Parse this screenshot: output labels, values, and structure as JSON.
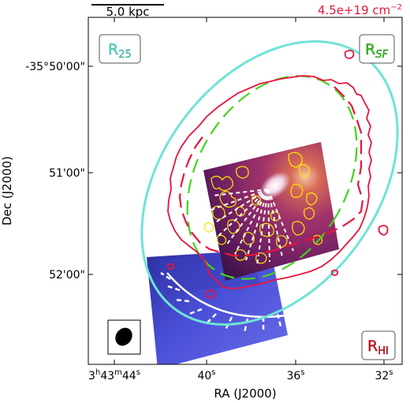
{
  "scale_bar": {
    "label": "5.0 kpc"
  },
  "contour_level": {
    "base": "4.5e+19 cm",
    "exponent": "−2"
  },
  "x_axis": {
    "title": "RA (J2000)",
    "ticks": [
      {
        "label": "3h43m44s",
        "parts": [
          "3",
          "h",
          "43",
          "m",
          "44",
          "s"
        ]
      },
      {
        "label": "40s",
        "parts": [
          "40",
          "s"
        ]
      },
      {
        "label": "36s",
        "parts": [
          "36",
          "s"
        ]
      },
      {
        "label": "32s",
        "parts": [
          "32",
          "s"
        ]
      }
    ]
  },
  "y_axis": {
    "title": "Dec (J2000)",
    "ticks": [
      "-35°50'00\"",
      "51'00\"",
      "52'00\""
    ]
  },
  "badges": {
    "r25": {
      "main": "R",
      "sub": "25",
      "color": "#5fe0cf"
    },
    "rsf": {
      "main": "R",
      "sub": "SF",
      "color": "#35c51c"
    },
    "rhi": {
      "main": "R",
      "sub": "HI",
      "color": "#d4141e"
    }
  },
  "colors": {
    "r25_ellipse": "#6fe3d6",
    "rsf_ellipse": "#45d21f",
    "hi_contour": "#e8143c",
    "star_formation_contours": "#ffe600",
    "uv_image": "#3c3cc8",
    "halpha_image": "#8a2a6e",
    "beam": "#000000"
  }
}
